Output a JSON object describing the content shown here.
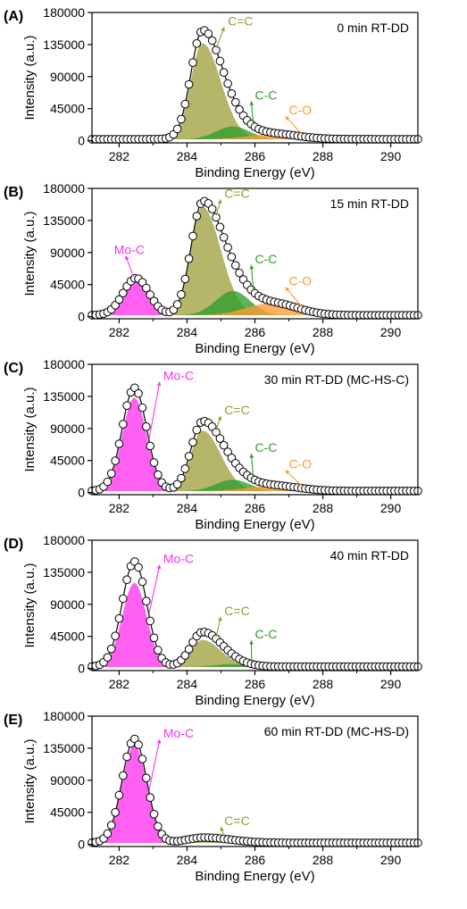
{
  "colors": {
    "mo_c": "#ff33ee",
    "c_eq_c": "#9a9a30",
    "c_c": "#2e9e2e",
    "c_o": "#ff9a33",
    "envelope": "#000000",
    "markers": "#ffffff"
  },
  "chart_data": [
    {
      "type": "line",
      "panel_label": "(A)",
      "title": "0 min RT-DD",
      "xlabel": "Binding Energy (eV)",
      "ylabel": "Intensity (a.u.)",
      "xlim": [
        281.2,
        290.8
      ],
      "ylim": [
        -3000,
        180000
      ],
      "x_ticks": [
        282,
        284,
        286,
        288,
        290
      ],
      "y_ticks": [
        0,
        45000,
        90000,
        135000,
        180000
      ],
      "grid": false,
      "legend": "none",
      "components": [
        {
          "label": "C=C",
          "center": 284.45,
          "height": 135000,
          "sigma": 0.34,
          "tail": 0.6,
          "color": "c_eq_c",
          "label_xy": [
            285.2,
            162000
          ]
        },
        {
          "label": "C-C",
          "center": 285.35,
          "height": 18000,
          "sigma": 0.5,
          "tail": 0.0,
          "color": "c_c",
          "label_xy": [
            286.0,
            58000
          ]
        },
        {
          "label": "C-O",
          "center": 286.5,
          "height": 7000,
          "sigma": 0.75,
          "tail": 0.0,
          "color": "c_o",
          "label_xy": [
            287.0,
            37000
          ]
        }
      ],
      "background": 2000,
      "peak_envelope": 155000,
      "annotations": [
        {
          "text": "C=C",
          "x": 285.2,
          "y": 162000,
          "color": "c_eq_c"
        },
        {
          "text": "C-C",
          "x": 286.0,
          "y": 58000,
          "color": "c_c"
        },
        {
          "text": "C-O",
          "x": 287.0,
          "y": 37000,
          "color": "c_o"
        }
      ]
    },
    {
      "type": "line",
      "panel_label": "(B)",
      "title": "15 min RT-DD",
      "xlabel": "Binding Energy (eV)",
      "ylabel": "Intensity (a.u.)",
      "xlim": [
        281.2,
        290.8
      ],
      "ylim": [
        -3000,
        180000
      ],
      "x_ticks": [
        282,
        284,
        286,
        288,
        290
      ],
      "y_ticks": [
        0,
        45000,
        90000,
        135000,
        180000
      ],
      "grid": false,
      "legend": "none",
      "components": [
        {
          "label": "Mo-C",
          "center": 282.5,
          "height": 52000,
          "sigma": 0.38,
          "tail": 0.0,
          "color": "mo_c",
          "label_xy": [
            282.3,
            88000
          ]
        },
        {
          "label": "C=C",
          "center": 284.45,
          "height": 152000,
          "sigma": 0.34,
          "tail": 0.6,
          "color": "c_eq_c",
          "label_xy": [
            285.1,
            167000
          ]
        },
        {
          "label": "C-C",
          "center": 285.35,
          "height": 34000,
          "sigma": 0.5,
          "tail": 0.0,
          "color": "c_c",
          "label_xy": [
            286.0,
            75000
          ]
        },
        {
          "label": "C-O",
          "center": 286.5,
          "height": 17000,
          "sigma": 0.75,
          "tail": 0.0,
          "color": "c_o",
          "label_xy": [
            287.0,
            44000
          ]
        }
      ],
      "background": 2000,
      "peak_envelope": 162000,
      "annotations": [
        {
          "text": "Mo-C",
          "x": 282.3,
          "y": 88000,
          "color": "mo_c"
        },
        {
          "text": "C=C",
          "x": 285.1,
          "y": 167000,
          "color": "c_eq_c"
        },
        {
          "text": "C-C",
          "x": 286.0,
          "y": 75000,
          "color": "c_c"
        },
        {
          "text": "C-O",
          "x": 287.0,
          "y": 44000,
          "color": "c_o"
        }
      ]
    },
    {
      "type": "line",
      "panel_label": "(C)",
      "title": "30 min RT-DD (MC-HS-C)",
      "xlabel": "Binding Energy (eV)",
      "ylabel": "Intensity (a.u.)",
      "xlim": [
        281.2,
        290.8
      ],
      "ylim": [
        -3000,
        180000
      ],
      "x_ticks": [
        282,
        284,
        286,
        288,
        290
      ],
      "y_ticks": [
        0,
        45000,
        90000,
        135000,
        180000
      ],
      "grid": false,
      "legend": "none",
      "components": [
        {
          "label": "Mo-C",
          "center": 282.45,
          "height": 131000,
          "sigma": 0.36,
          "tail": 0.0,
          "color": "mo_c",
          "label_xy": [
            283.3,
            158000
          ]
        },
        {
          "label": "C=C",
          "center": 284.45,
          "height": 85000,
          "sigma": 0.34,
          "tail": 0.6,
          "color": "c_eq_c",
          "label_xy": [
            285.1,
            110000
          ]
        },
        {
          "label": "C-C",
          "center": 285.35,
          "height": 16000,
          "sigma": 0.5,
          "tail": 0.0,
          "color": "c_c",
          "label_xy": [
            286.0,
            57000
          ]
        },
        {
          "label": "C-O",
          "center": 286.5,
          "height": 7000,
          "sigma": 0.75,
          "tail": 0.0,
          "color": "c_o",
          "label_xy": [
            287.0,
            34000
          ]
        }
      ],
      "background": 2000,
      "peak_envelope": 147000,
      "annotations": [
        {
          "text": "Mo-C",
          "x": 283.3,
          "y": 158000,
          "color": "mo_c"
        },
        {
          "text": "C=C",
          "x": 285.1,
          "y": 110000,
          "color": "c_eq_c"
        },
        {
          "text": "C-C",
          "x": 286.0,
          "y": 57000,
          "color": "c_c"
        },
        {
          "text": "C-O",
          "x": 287.0,
          "y": 34000,
          "color": "c_o"
        }
      ]
    },
    {
      "type": "line",
      "panel_label": "(D)",
      "title": "40 min RT-DD",
      "xlabel": "Binding Energy (eV)",
      "ylabel": "Intensity (a.u.)",
      "xlim": [
        281.2,
        290.8
      ],
      "ylim": [
        -3000,
        180000
      ],
      "x_ticks": [
        282,
        284,
        286,
        288,
        290
      ],
      "y_ticks": [
        0,
        45000,
        90000,
        135000,
        180000
      ],
      "grid": false,
      "legend": "none",
      "components": [
        {
          "label": "Mo-C",
          "center": 282.45,
          "height": 118000,
          "sigma": 0.36,
          "tail": 0.0,
          "color": "mo_c",
          "label_xy": [
            283.3,
            148000
          ]
        },
        {
          "label": "C=C",
          "center": 284.45,
          "height": 38000,
          "sigma": 0.34,
          "tail": 0.6,
          "color": "c_eq_c",
          "label_xy": [
            285.1,
            75000
          ]
        },
        {
          "label": "C-C",
          "center": 285.3,
          "height": 4000,
          "sigma": 0.5,
          "tail": 0.0,
          "color": "c_c",
          "label_xy": [
            286.0,
            42000
          ]
        }
      ],
      "background": 2000,
      "peak_envelope": 150000,
      "annotations": [
        {
          "text": "Mo-C",
          "x": 283.3,
          "y": 148000,
          "color": "mo_c"
        },
        {
          "text": "C=C",
          "x": 285.1,
          "y": 75000,
          "color": "c_eq_c"
        },
        {
          "text": "C-C",
          "x": 286.0,
          "y": 42000,
          "color": "c_c"
        }
      ]
    },
    {
      "type": "line",
      "panel_label": "(E)",
      "title": "60 min RT-DD (MC-HS-D)",
      "xlabel": "Binding Energy (eV)",
      "ylabel": "Intensity (a.u.)",
      "xlim": [
        281.2,
        290.8
      ],
      "ylim": [
        -3000,
        180000
      ],
      "x_ticks": [
        282,
        284,
        286,
        288,
        290
      ],
      "y_ticks": [
        0,
        45000,
        90000,
        135000,
        180000
      ],
      "grid": false,
      "legend": "none",
      "components": [
        {
          "label": "Mo-C",
          "center": 282.45,
          "height": 138000,
          "sigma": 0.36,
          "tail": 0.0,
          "color": "mo_c",
          "label_xy": [
            283.3,
            150000
          ]
        },
        {
          "label": "C=C",
          "center": 284.5,
          "height": 7000,
          "sigma": 0.5,
          "tail": 0.6,
          "color": "c_eq_c",
          "label_xy": [
            285.1,
            27000
          ]
        }
      ],
      "background": 2000,
      "peak_envelope": 148000,
      "annotations": [
        {
          "text": "Mo-C",
          "x": 283.3,
          "y": 150000,
          "color": "mo_c"
        },
        {
          "text": "C=C",
          "x": 285.1,
          "y": 27000,
          "color": "c_eq_c"
        }
      ]
    }
  ]
}
